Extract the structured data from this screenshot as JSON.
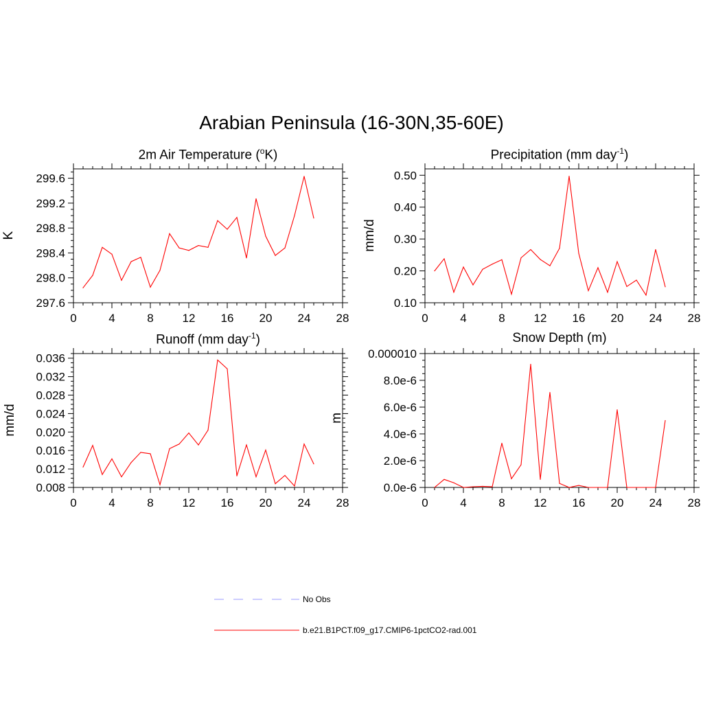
{
  "title": "Arabian Peninsula (16-30N,35-60E)",
  "legend": {
    "items": [
      {
        "label": "No Obs",
        "color": "#9999ff",
        "style": "dashed"
      },
      {
        "label": "b.e21.B1PCT.f09_g17.CMIP6-1pctCO2-rad.001",
        "color": "#ff0000",
        "style": "solid"
      }
    ]
  },
  "panels": [
    {
      "title_main": "2m Air Temperature (",
      "title_sup": "o",
      "title_end": "K)",
      "ylabel": "K"
    },
    {
      "title_main": "Precipitation (mm day",
      "title_sup": "-1",
      "title_end": ")",
      "ylabel": "mm/d"
    },
    {
      "title_main": "Runoff (mm day",
      "title_sup": "-1",
      "title_end": ")",
      "ylabel": "mm/d"
    },
    {
      "title_main": "Snow Depth (m)",
      "title_sup": "",
      "title_end": "",
      "ylabel": "m"
    }
  ],
  "chart_data": [
    {
      "type": "line",
      "title": "2m Air Temperature (oK)",
      "ylabel": "K",
      "xlim": [
        0,
        28
      ],
      "ylim": [
        297.6,
        299.75
      ],
      "xticks": [
        0,
        4,
        8,
        12,
        16,
        20,
        24,
        28
      ],
      "xtick_labels": [
        "0",
        "4",
        "8",
        "12",
        "16",
        "20",
        "24",
        "28"
      ],
      "yticks": [
        297.6,
        298.0,
        298.4,
        298.8,
        299.2,
        299.6
      ],
      "ytick_labels": [
        "297.6",
        "298.0",
        "298.4",
        "298.8",
        "299.2",
        "299.6"
      ],
      "series": [
        {
          "name": "b.e21.B1PCT.f09_g17.CMIP6-1pctCO2-rad.001",
          "color": "#ff0000",
          "x": [
            1,
            2,
            3,
            4,
            5,
            6,
            7,
            8,
            9,
            10,
            11,
            12,
            13,
            14,
            15,
            16,
            17,
            18,
            19,
            20,
            21,
            22,
            23,
            24,
            25
          ],
          "values": [
            297.84,
            298.04,
            298.49,
            298.38,
            297.96,
            298.26,
            298.33,
            297.85,
            298.12,
            298.71,
            298.48,
            298.44,
            298.52,
            298.49,
            298.92,
            298.78,
            298.97,
            298.32,
            299.27,
            298.67,
            298.36,
            298.48,
            299.0,
            299.63,
            298.96
          ]
        }
      ]
    },
    {
      "type": "line",
      "title": "Precipitation (mm day-1)",
      "ylabel": "mm/d",
      "xlim": [
        0,
        28
      ],
      "ylim": [
        0.1,
        0.52
      ],
      "xticks": [
        0,
        4,
        8,
        12,
        16,
        20,
        24,
        28
      ],
      "xtick_labels": [
        "0",
        "4",
        "8",
        "12",
        "16",
        "20",
        "24",
        "28"
      ],
      "yticks": [
        0.1,
        0.2,
        0.3,
        0.4,
        0.5
      ],
      "ytick_labels": [
        "0.10",
        "0.20",
        "0.30",
        "0.40",
        "0.50"
      ],
      "series": [
        {
          "name": "b.e21.B1PCT.f09_g17.CMIP6-1pctCO2-rad.001",
          "color": "#ff0000",
          "x": [
            1,
            2,
            3,
            4,
            5,
            6,
            7,
            8,
            9,
            10,
            11,
            12,
            13,
            14,
            15,
            16,
            17,
            18,
            19,
            20,
            21,
            22,
            23,
            24,
            25
          ],
          "values": [
            0.2,
            0.238,
            0.133,
            0.212,
            0.156,
            0.205,
            0.221,
            0.235,
            0.127,
            0.241,
            0.267,
            0.236,
            0.216,
            0.271,
            0.497,
            0.255,
            0.138,
            0.21,
            0.133,
            0.229,
            0.151,
            0.171,
            0.124,
            0.267,
            0.15
          ]
        }
      ]
    },
    {
      "type": "line",
      "title": "Runoff (mm day-1)",
      "ylabel": "mm/d",
      "xlim": [
        0,
        28
      ],
      "ylim": [
        0.008,
        0.037
      ],
      "xticks": [
        0,
        4,
        8,
        12,
        16,
        20,
        24,
        28
      ],
      "xtick_labels": [
        "0",
        "4",
        "8",
        "12",
        "16",
        "20",
        "24",
        "28"
      ],
      "yticks": [
        0.008,
        0.012,
        0.016,
        0.02,
        0.024,
        0.028,
        0.032,
        0.036
      ],
      "ytick_labels": [
        "0.008",
        "0.012",
        "0.016",
        "0.020",
        "0.024",
        "0.028",
        "0.032",
        "0.036"
      ],
      "series": [
        {
          "name": "b.e21.B1PCT.f09_g17.CMIP6-1pctCO2-rad.001",
          "color": "#ff0000",
          "x": [
            1,
            2,
            3,
            4,
            5,
            6,
            7,
            8,
            9,
            10,
            11,
            12,
            13,
            14,
            15,
            16,
            17,
            18,
            19,
            20,
            21,
            22,
            23,
            24,
            25
          ],
          "values": [
            0.0124,
            0.0171,
            0.0108,
            0.0142,
            0.0103,
            0.0134,
            0.0156,
            0.0153,
            0.0086,
            0.0164,
            0.0174,
            0.0198,
            0.0172,
            0.0204,
            0.0356,
            0.0337,
            0.0105,
            0.0172,
            0.0103,
            0.0161,
            0.0088,
            0.0106,
            0.0083,
            0.0174,
            0.0131
          ]
        }
      ]
    },
    {
      "type": "line",
      "title": "Snow Depth (m)",
      "ylabel": "m",
      "xlim": [
        0,
        28
      ],
      "ylim": [
        0,
        1e-05
      ],
      "xticks": [
        0,
        4,
        8,
        12,
        16,
        20,
        24,
        28
      ],
      "xtick_labels": [
        "0",
        "4",
        "8",
        "12",
        "16",
        "20",
        "24",
        "28"
      ],
      "yticks": [
        0,
        2e-06,
        4e-06,
        6e-06,
        8e-06,
        1e-05
      ],
      "ytick_labels": [
        "0.0e-6",
        "2.0e-6",
        "4.0e-6",
        "6.0e-6",
        "8.0e-6",
        "0.000010"
      ],
      "series": [
        {
          "name": "b.e21.B1PCT.f09_g17.CMIP6-1pctCO2-rad.001",
          "color": "#ff0000",
          "x": [
            1,
            2,
            3,
            4,
            5,
            6,
            7,
            8,
            9,
            10,
            11,
            12,
            13,
            14,
            15,
            16,
            17,
            18,
            19,
            20,
            21,
            22,
            23,
            24,
            25
          ],
          "values": [
            0.0,
            6e-07,
            3.5e-07,
            0.0,
            5e-08,
            8e-08,
            5e-08,
            3.3e-06,
            6.5e-07,
            1.7e-06,
            9.2e-06,
            6e-07,
            7.1e-06,
            3e-07,
            0.0,
            1.5e-07,
            0.0,
            0.0,
            0.0,
            5.8e-06,
            0.0,
            0.0,
            0.0,
            0.0,
            5e-06
          ]
        }
      ]
    }
  ]
}
